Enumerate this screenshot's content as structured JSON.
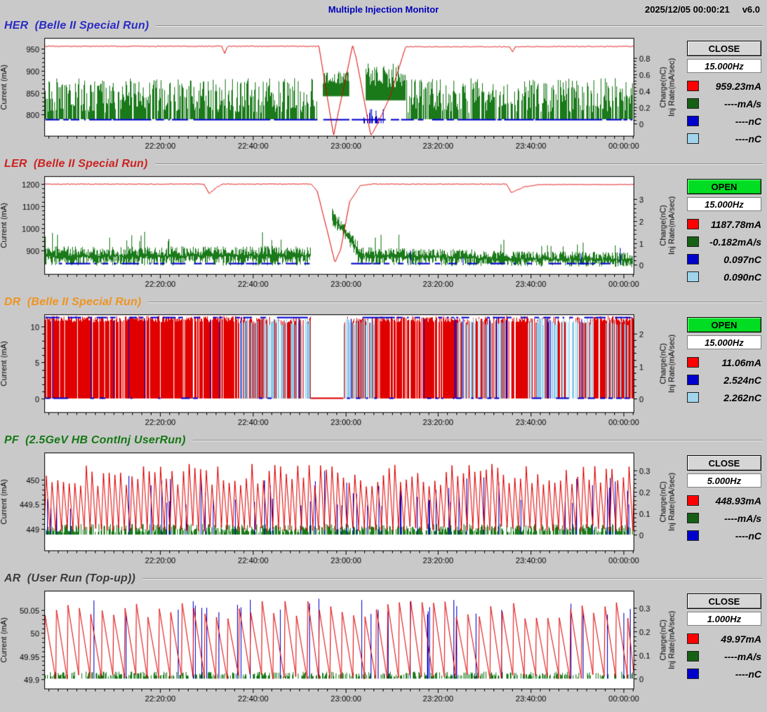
{
  "header": {
    "title": "Multiple Injection Monitor",
    "timestamp": "2025/12/05 00:00:21",
    "version": "v6.0"
  },
  "time_axis": [
    {
      "f": 0.196,
      "t": "22:20:00"
    },
    {
      "f": 0.3532,
      "t": "22:40:00"
    },
    {
      "f": 0.5104,
      "t": "23:00:00"
    },
    {
      "f": 0.6676,
      "t": "23:20:00"
    },
    {
      "f": 0.8248,
      "t": "23:40:00"
    },
    {
      "f": 0.982,
      "t": "00:00:00"
    }
  ],
  "panels": [
    {
      "id": "HER",
      "title": "HER  (Belle II Special Run)",
      "title_color": "#2b2bc4",
      "status": {
        "label": "CLOSE",
        "kind": "close"
      },
      "freq": "15.000Hz",
      "legend": [
        {
          "name": "current",
          "color": "#ff0000",
          "value": "959.23mA"
        },
        {
          "name": "inj-rate",
          "color": "#156015",
          "value": "----mA/s"
        },
        {
          "name": "charge-1",
          "color": "#0000cc",
          "value": "----nC"
        },
        {
          "name": "charge-2",
          "color": "#9fd4ec",
          "value": "----nC"
        }
      ],
      "axes": {
        "left_label": "Current (mA)",
        "right_label_1": "Charge(nC)",
        "right_label_2": "Inj Rate(mA/sec)",
        "left_ticks": [
          {
            "v": 950,
            "t": "950"
          },
          {
            "v": 900,
            "t": "900"
          },
          {
            "v": 850,
            "t": "850"
          },
          {
            "v": 800,
            "t": "800"
          }
        ],
        "right_ticks": [
          {
            "v": 0.8,
            "t": "0.8"
          },
          {
            "v": 0.6,
            "t": "0.6"
          },
          {
            "v": 0.4,
            "t": "0.4"
          },
          {
            "v": 0.2,
            "t": "0.2"
          },
          {
            "v": 0,
            "t": "0"
          }
        ],
        "left_range": [
          750,
          975
        ],
        "right_range": [
          -0.16,
          1.04
        ]
      },
      "series": [
        {
          "type": "spikes",
          "axis": "right",
          "color": "#1a7a1a",
          "bands": [
            {
              "x0": 0.002,
              "x1": 0.463,
              "base": 0.05,
              "hmin": 0.08,
              "hmax": 0.5,
              "density": 0.8
            },
            {
              "x0": 0.473,
              "x1": 0.517,
              "base": 0.33,
              "hmin": 0.15,
              "hmax": 0.32,
              "density": 1
            },
            {
              "x0": 0.545,
              "x1": 0.612,
              "base": 0.28,
              "hmin": 0.15,
              "hmax": 0.45,
              "density": 1
            },
            {
              "x0": 0.615,
              "x1": 0.998,
              "base": 0.05,
              "hmin": 0.08,
              "hmax": 0.5,
              "density": 0.8
            }
          ]
        },
        {
          "type": "dashline",
          "axis": "right",
          "color": "#0000cc",
          "v": 0.05,
          "lw": 2,
          "prob": 0.8,
          "segs": [
            [
              0.002,
              0.463
            ],
            [
              0.473,
              0.998
            ]
          ]
        },
        {
          "type": "spikes",
          "axis": "right",
          "color": "#0000cc",
          "bands": [
            {
              "x0": 0.54,
              "x1": 0.575,
              "base": 0.0,
              "hmin": 0.05,
              "hmax": 0.18,
              "density": 0.5
            }
          ]
        },
        {
          "type": "line",
          "axis": "left",
          "color": "#e00000",
          "noise": 2,
          "points": [
            [
              0,
              956
            ],
            [
              0.3,
              956
            ],
            [
              0.305,
              940
            ],
            [
              0.31,
              956
            ],
            [
              0.465,
              956
            ],
            [
              0.468,
              930
            ],
            [
              0.49,
              752
            ],
            [
              0.497,
              800
            ],
            [
              0.51,
              880
            ],
            [
              0.522,
              958
            ],
            [
              0.528,
              930
            ],
            [
              0.553,
              752
            ],
            [
              0.565,
              780
            ],
            [
              0.585,
              840
            ],
            [
              0.612,
              955
            ],
            [
              0.788,
              955
            ],
            [
              0.793,
              943
            ],
            [
              0.798,
              955
            ],
            [
              1,
              956
            ]
          ]
        }
      ]
    },
    {
      "id": "LER",
      "title": "LER  (Belle II Special Run)",
      "title_color": "#cc2222",
      "status": {
        "label": "OPEN",
        "kind": "open"
      },
      "freq": "15.000Hz",
      "legend": [
        {
          "name": "current",
          "color": "#ff0000",
          "value": "1187.78mA"
        },
        {
          "name": "inj-rate",
          "color": "#156015",
          "value": "-0.182mA/s"
        },
        {
          "name": "charge-1",
          "color": "#0000cc",
          "value": "0.097nC"
        },
        {
          "name": "charge-2",
          "color": "#9fd4ec",
          "value": "0.090nC"
        }
      ],
      "axes": {
        "left_label": "Current (mA)",
        "right_label_1": "Charge(nC)",
        "right_label_2": "Inj Rate(mA/sec)",
        "left_ticks": [
          {
            "v": 1200,
            "t": "1200"
          },
          {
            "v": 1100,
            "t": "1100"
          },
          {
            "v": 1000,
            "t": "1000"
          },
          {
            "v": 900,
            "t": "900"
          }
        ],
        "right_ticks": [
          {
            "v": 3,
            "t": "3"
          },
          {
            "v": 2,
            "t": "2"
          },
          {
            "v": 1,
            "t": "1"
          },
          {
            "v": 0,
            "t": "0"
          }
        ],
        "left_range": [
          790,
          1235
        ],
        "right_range": [
          -0.45,
          4.06
        ]
      },
      "series": [
        {
          "type": "noiseband",
          "axis": "right",
          "color": "#1a7a1a",
          "bands": [
            {
              "x0": 0.002,
              "x1": 0.452,
              "c0": 0.4,
              "c1": 0.42,
              "amp": 0.45
            },
            {
              "x0": 0.488,
              "x1": 0.532,
              "c0": 2.2,
              "c1": 0.65,
              "amp": 0.4
            },
            {
              "x0": 0.532,
              "x1": 0.73,
              "c0": 0.42,
              "c1": 0.32,
              "amp": 0.4
            },
            {
              "x0": 0.73,
              "x1": 0.998,
              "c0": 0.3,
              "c1": 0.24,
              "amp": 0.35
            }
          ]
        },
        {
          "type": "dashline",
          "axis": "right",
          "color": "#0000cc",
          "v": 0.08,
          "lw": 2,
          "prob": 0.5,
          "segs": [
            [
              0.02,
              0.45
            ],
            [
              0.52,
              0.96
            ]
          ]
        },
        {
          "type": "spikes",
          "axis": "right",
          "color": "#0000cc",
          "bands": [
            {
              "x0": 0.6,
              "x1": 0.98,
              "base": 0,
              "hmin": 0.3,
              "hmax": 0.95,
              "density": 0.015
            }
          ]
        },
        {
          "type": "line",
          "axis": "left",
          "color": "#e00000",
          "noise": 3,
          "points": [
            [
              0,
              1199
            ],
            [
              0.27,
              1199
            ],
            [
              0.279,
              1156
            ],
            [
              0.292,
              1186
            ],
            [
              0.302,
              1199
            ],
            [
              0.452,
              1199
            ],
            [
              0.462,
              1168
            ],
            [
              0.478,
              1000
            ],
            [
              0.492,
              845
            ],
            [
              0.502,
              905
            ],
            [
              0.517,
              1120
            ],
            [
              0.535,
              1192
            ],
            [
              0.555,
              1199
            ],
            [
              0.783,
              1199
            ],
            [
              0.791,
              1160
            ],
            [
              0.812,
              1186
            ],
            [
              0.838,
              1197
            ],
            [
              1,
              1197
            ]
          ]
        }
      ]
    },
    {
      "id": "DR",
      "title": "DR  (Belle II Special Run)",
      "title_color": "#ef9421",
      "status": {
        "label": "OPEN",
        "kind": "open"
      },
      "freq": "15.000Hz",
      "legend": [
        {
          "name": "current",
          "color": "#ff0000",
          "value": "11.06mA"
        },
        {
          "name": "charge-1",
          "color": "#0000cc",
          "value": "2.524nC"
        },
        {
          "name": "charge-2",
          "color": "#9fd4ec",
          "value": "2.262nC"
        }
      ],
      "axes": {
        "left_label": "Current (mA)",
        "right_label_1": "Charge(nC)",
        "right_label_2": "Inj Rate(mA/sec)",
        "left_ticks": [
          {
            "v": 10,
            "t": "10"
          },
          {
            "v": 5,
            "t": "5"
          },
          {
            "v": 0,
            "t": "0"
          }
        ],
        "right_ticks": [
          {
            "v": 2,
            "t": "2"
          },
          {
            "v": 1,
            "t": "1"
          },
          {
            "v": 0,
            "t": "0"
          }
        ],
        "left_range": [
          -2,
          11.7
        ],
        "right_range": [
          -0.44,
          2.6
        ]
      },
      "series": [
        {
          "type": "spikes",
          "axis": "left",
          "color": "#e00000",
          "bands": [
            {
              "x0": 0.002,
              "x1": 0.33,
              "base": 0,
              "hmin": 10.6,
              "hmax": 11.5,
              "density": 0.85
            },
            {
              "x0": 0.33,
              "x1": 0.452,
              "base": 0,
              "hmin": 10.5,
              "hmax": 11.4,
              "density": 0.5
            },
            {
              "x0": 0.507,
              "x1": 0.56,
              "base": 0,
              "hmin": 10.5,
              "hmax": 11.4,
              "density": 0.5
            },
            {
              "x0": 0.56,
              "x1": 0.7,
              "base": 0,
              "hmin": 10.6,
              "hmax": 11.5,
              "density": 0.85
            },
            {
              "x0": 0.7,
              "x1": 0.78,
              "base": 0,
              "hmin": 10.5,
              "hmax": 11.4,
              "density": 0.55
            },
            {
              "x0": 0.78,
              "x1": 0.82,
              "base": 0,
              "hmin": 10.6,
              "hmax": 11.5,
              "density": 0.85
            },
            {
              "x0": 0.82,
              "x1": 0.93,
              "base": 0,
              "hmin": 10.5,
              "hmax": 11.4,
              "density": 0.55
            },
            {
              "x0": 0.93,
              "x1": 0.998,
              "base": 0,
              "hmin": 10.6,
              "hmax": 11.5,
              "density": 0.8
            }
          ]
        },
        {
          "type": "spikes",
          "axis": "left",
          "color": "#8fcbe8",
          "bands": [
            {
              "x0": 0.33,
              "x1": 0.452,
              "base": 0,
              "hmin": 10.2,
              "hmax": 11.2,
              "density": 0.5
            },
            {
              "x0": 0.507,
              "x1": 0.565,
              "base": 0,
              "hmin": 10.2,
              "hmax": 11.2,
              "density": 0.55
            },
            {
              "x0": 0.7,
              "x1": 0.78,
              "base": 0,
              "hmin": 10.2,
              "hmax": 11.2,
              "density": 0.4
            },
            {
              "x0": 0.82,
              "x1": 0.93,
              "base": 0,
              "hmin": 10.2,
              "hmax": 11.2,
              "density": 0.45
            },
            {
              "x0": 0.952,
              "x1": 0.99,
              "base": 0,
              "hmin": 10.2,
              "hmax": 11.2,
              "density": 0.35
            }
          ]
        },
        {
          "type": "dashline",
          "axis": "left",
          "color": "#0000cc",
          "v": 11.3,
          "lw": 2,
          "prob": 0.55,
          "segs": [
            [
              0.002,
              0.452
            ],
            [
              0.507,
              0.998
            ]
          ]
        },
        {
          "type": "dashline",
          "axis": "left",
          "color": "#0000cc",
          "v": 0.08,
          "lw": 2,
          "prob": 0.3,
          "segs": [
            [
              0.002,
              0.452
            ],
            [
              0.507,
              0.998
            ]
          ]
        },
        {
          "type": "spikes",
          "axis": "left",
          "color": "#0000cc",
          "bands": [
            {
              "x0": 0.002,
              "x1": 0.998,
              "base": 0,
              "hmin": 10.8,
              "hmax": 11.3,
              "density": 0.03
            }
          ]
        },
        {
          "type": "dashline",
          "axis": "left",
          "color": "#e00000",
          "v": 0.05,
          "lw": 2,
          "prob": 1,
          "segs": [
            [
              0.452,
              0.507
            ]
          ]
        }
      ]
    },
    {
      "id": "PF",
      "title": "PF  (2.5GeV HB ContInj UserRun)",
      "title_color": "#157815",
      "status": {
        "label": "CLOSE",
        "kind": "close"
      },
      "freq": "5.000Hz",
      "legend": [
        {
          "name": "current",
          "color": "#ff0000",
          "value": "448.93mA"
        },
        {
          "name": "inj-rate",
          "color": "#156015",
          "value": "----mA/s"
        },
        {
          "name": "charge-1",
          "color": "#0000cc",
          "value": "----nC"
        }
      ],
      "axes": {
        "left_label": "Current (mA)",
        "right_label_1": "Charge(nC)",
        "right_label_2": "Inj Rate(mA/sec)",
        "left_ticks": [
          {
            "v": 450,
            "t": "450"
          },
          {
            "v": 449.5,
            "t": "449.5"
          },
          {
            "v": 449,
            "t": "449"
          }
        ],
        "right_ticks": [
          {
            "v": 0.3,
            "t": "0.3"
          },
          {
            "v": 0.2,
            "t": "0.2"
          },
          {
            "v": 0.1,
            "t": "0.1"
          },
          {
            "v": 0,
            "t": "0"
          }
        ],
        "left_range": [
          448.55,
          450.55
        ],
        "right_range": [
          -0.077,
          0.383
        ]
      },
      "series": [
        {
          "type": "spikes",
          "axis": "right",
          "color": "#1a7a1a",
          "bands": [
            {
              "x0": 0.002,
              "x1": 0.998,
              "base": 0,
              "hmin": 0.01,
              "hmax": 0.05,
              "density": 0.7
            }
          ]
        },
        {
          "type": "spikes",
          "axis": "right",
          "color": "#0000cc",
          "bands": [
            {
              "x0": 0.002,
              "x1": 0.998,
              "base": 0,
              "hmin": 0.12,
              "hmax": 0.3,
              "density": 0.08
            }
          ]
        },
        {
          "type": "sawtooth",
          "axis": "left",
          "color": "#e00000",
          "period": 8,
          "rise": 0.35,
          "vmin": 448.95,
          "vjit": 0.12,
          "pmin": 449.85,
          "pmax": 450.32
        }
      ]
    },
    {
      "id": "AR",
      "title": "AR  (User Run (Top-up))",
      "title_color": "#3c3c3c",
      "status": {
        "label": "CLOSE",
        "kind": "close"
      },
      "freq": "1.000Hz",
      "legend": [
        {
          "name": "current",
          "color": "#ff0000",
          "value": "49.97mA"
        },
        {
          "name": "inj-rate",
          "color": "#156015",
          "value": "----mA/s"
        },
        {
          "name": "charge-1",
          "color": "#0000cc",
          "value": "----nC"
        }
      ],
      "axes": {
        "left_label": "Current (mA)",
        "right_label_1": "Charge(nC)",
        "right_label_2": "Inj Rate(mA/sec)",
        "left_ticks": [
          {
            "v": 50.05,
            "t": "50.05"
          },
          {
            "v": 50,
            "t": "50"
          },
          {
            "v": 49.95,
            "t": "49.95"
          },
          {
            "v": 49.9,
            "t": "49.9"
          }
        ],
        "right_ticks": [
          {
            "v": 0.3,
            "t": "0.3"
          },
          {
            "v": 0.2,
            "t": "0.2"
          },
          {
            "v": 0.1,
            "t": "0.1"
          },
          {
            "v": 0,
            "t": "0"
          }
        ],
        "left_range": [
          49.878,
          50.092
        ],
        "right_range": [
          -0.045,
          0.373
        ]
      },
      "series": [
        {
          "type": "spikes",
          "axis": "right",
          "color": "#1a7a1a",
          "bands": [
            {
              "x0": 0.002,
              "x1": 0.998,
              "base": 0,
              "hmin": 0.008,
              "hmax": 0.03,
              "density": 0.5
            }
          ]
        },
        {
          "type": "spikes",
          "axis": "right",
          "color": "#0000cc",
          "bands": [
            {
              "x0": 0.002,
              "x1": 0.998,
              "base": 0,
              "hmin": 0.27,
              "hmax": 0.34,
              "density": 0.04
            }
          ]
        },
        {
          "type": "sawtooth",
          "axis": "left",
          "color": "#e00000",
          "period": 16,
          "rise": 0.07,
          "vmin": 49.9,
          "vjit": 0.012,
          "pmin": 50.03,
          "pmax": 50.07
        }
      ]
    }
  ]
}
